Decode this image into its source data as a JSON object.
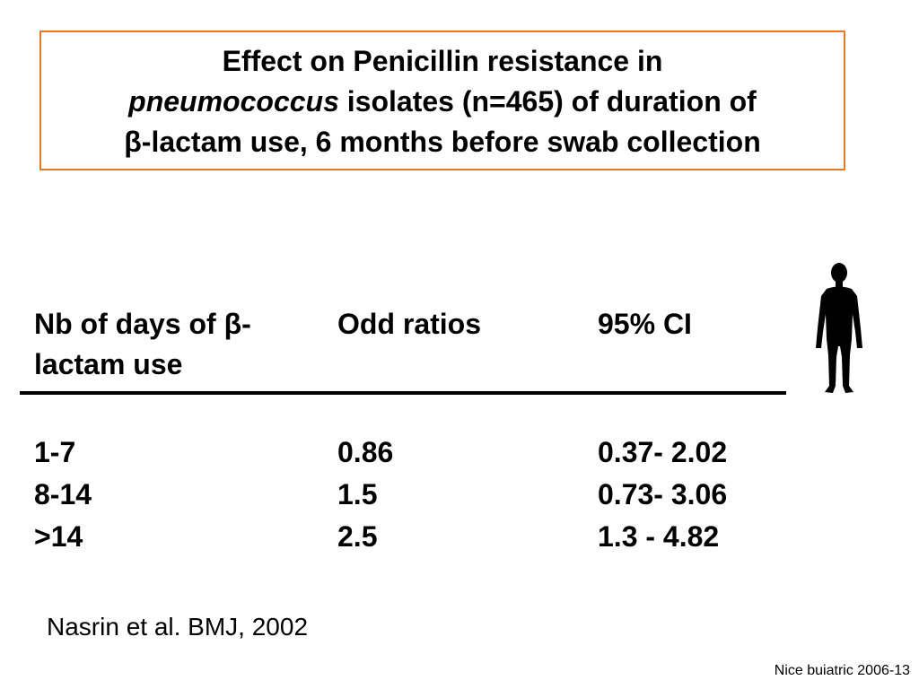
{
  "title": {
    "line1": "Effect on Penicillin resistance in",
    "line2_italic": "pneumococcus",
    "line2_rest": " isolates (n=465) of duration of",
    "line3_symbol": "β",
    "line3_rest": "-lactam use, 6 months before swab collection"
  },
  "table": {
    "headers": {
      "col1_line1_prefix": "Nb of days of ",
      "col1_symbol": "β",
      "col1_line1_suffix": "-",
      "col1_line2": "lactam use",
      "col2": "Odd ratios",
      "col3": "95% CI"
    },
    "rows": [
      {
        "days": "1-7",
        "odds": "0.86",
        "ci": "0.37- 2.02"
      },
      {
        "days": "8-14",
        "odds": "1.5",
        "ci": "0.73- 3.06"
      },
      {
        "days": ">14",
        "odds": "2.5",
        "ci": "1.3 - 4.82"
      }
    ]
  },
  "citation": "Nasrin et al. BMJ, 2002",
  "footer": "Nice buiatric 2006-13",
  "colors": {
    "title_border": "#e87722",
    "text": "#000000"
  },
  "icons": {
    "person": "person-silhouette-icon"
  }
}
